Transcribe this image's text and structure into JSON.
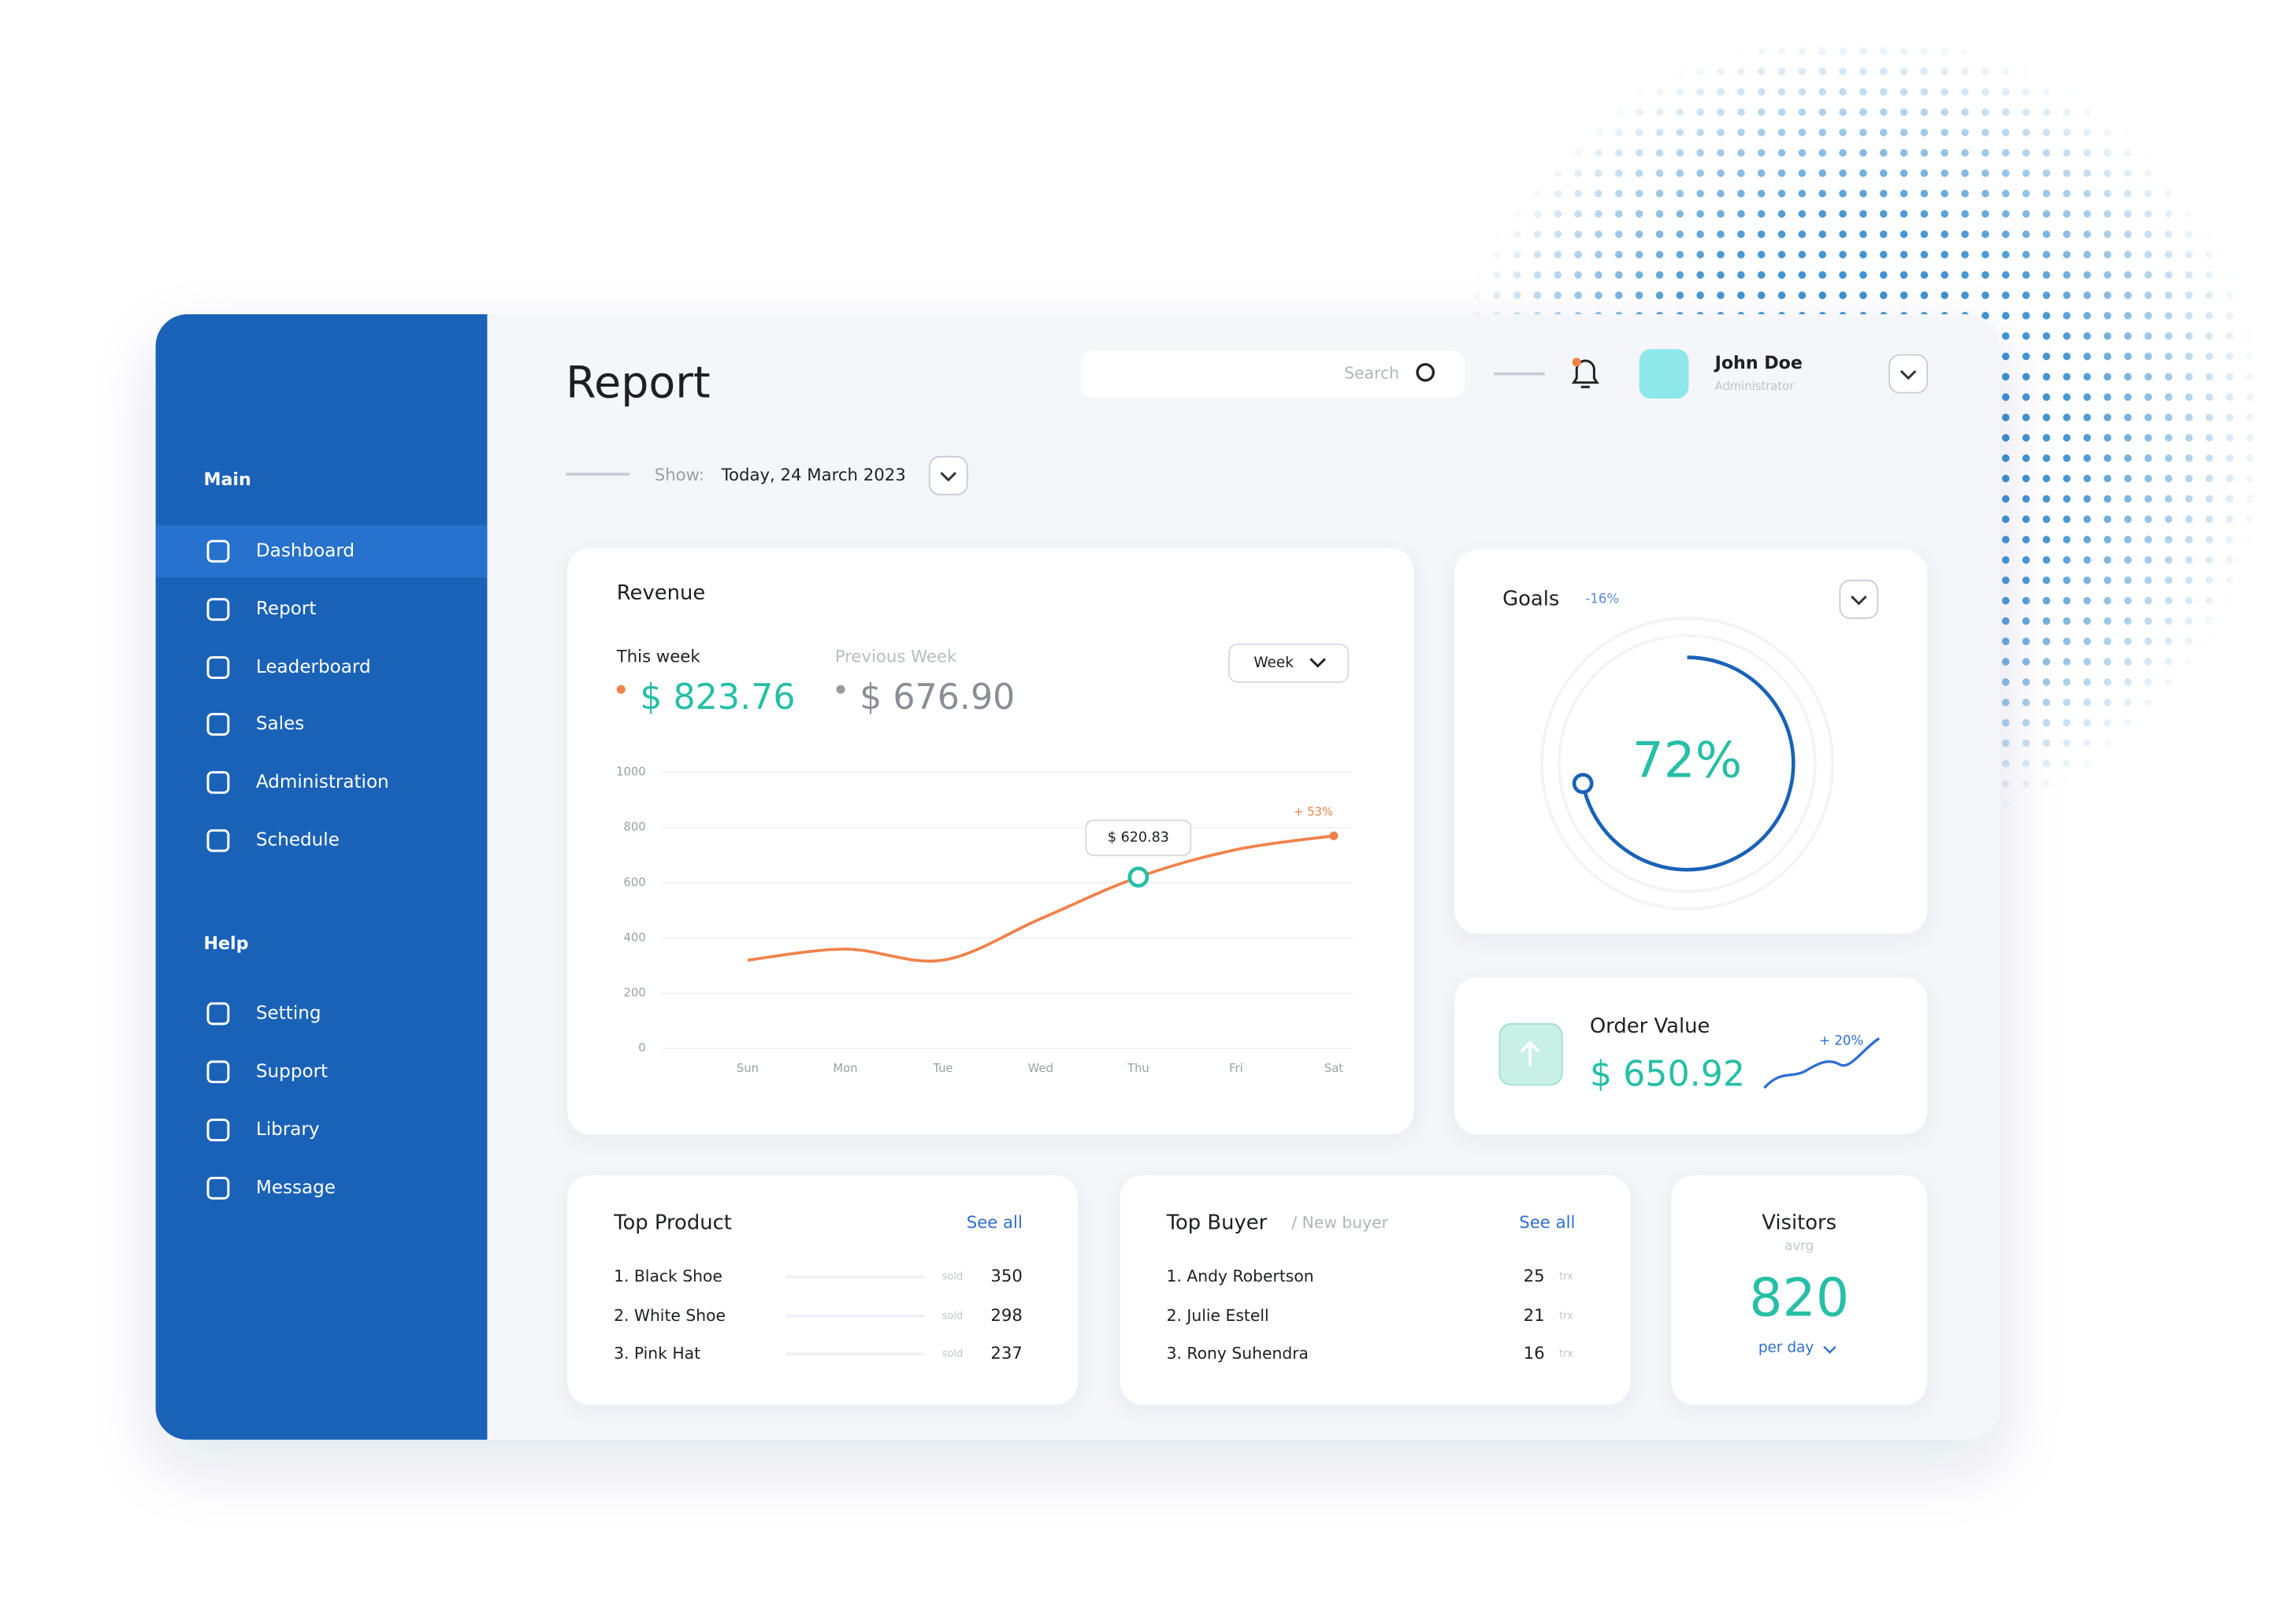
{
  "sidebar": {
    "sections": [
      {
        "title": "Main",
        "items": [
          "Dashboard",
          "Report",
          "Leaderboard",
          "Sales",
          "Administration",
          "Schedule"
        ]
      },
      {
        "title": "Help",
        "items": [
          "Setting",
          "Support",
          "Library",
          "Message"
        ]
      }
    ]
  },
  "header": {
    "title": "Report",
    "search": "Search",
    "user": {
      "name": "John Doe",
      "role": "Administrator"
    },
    "show_label": "Show:",
    "date": "Today, 24 March 2023"
  },
  "revenue": {
    "title": "Revenue",
    "this_week_label": "This week",
    "this_week": "$ 823.76",
    "previous_week_label": "Previous Week",
    "previous_week": "$ 676.90",
    "period": "Week",
    "chart": {
      "type": "line",
      "categories": [
        "Sun",
        "Mon",
        "Tue",
        "Wed",
        "Thu",
        "Fri",
        "Sat"
      ],
      "values": [
        320,
        360,
        320,
        470,
        620.83,
        720,
        770
      ],
      "value_labels": [
        null,
        null,
        null,
        null,
        "$ 620.83",
        null,
        null
      ],
      "annotation": "+ 53%",
      "color": "#f0824a",
      "ylim": [
        0,
        1000
      ],
      "yticks": [
        0,
        200,
        400,
        600,
        800,
        1000
      ],
      "grid": true
    }
  },
  "goals": {
    "title": "Goals",
    "change": "-16%",
    "value": "72%"
  },
  "order_value": {
    "title": "Order Value",
    "value": "$ 650.92",
    "change": "+ 20%"
  },
  "top_product": {
    "title": "Top Product",
    "see_all": "See all",
    "rows": [
      [
        "1. Black Shoe",
        "sold",
        "350"
      ],
      [
        "2. White Shoe",
        "sold",
        "298"
      ],
      [
        "3. Pink Hat",
        "sold",
        "237"
      ]
    ]
  },
  "top_buyer": {
    "title": "Top Buyer",
    "subtitle": "/ New buyer",
    "see_all": "See all",
    "rows": [
      [
        "1. Andy Robertson",
        "25",
        "trx"
      ],
      [
        "2. Julie Estell",
        "21",
        "trx"
      ],
      [
        "3. Rony Suhendra",
        "16",
        "trx"
      ]
    ]
  },
  "visitors": {
    "title": "Visitors",
    "subtitle": "avrg",
    "value": "820",
    "unit": "per day"
  }
}
